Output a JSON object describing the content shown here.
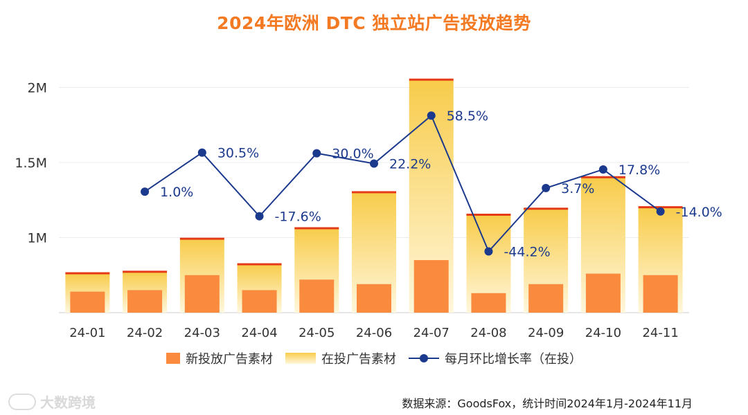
{
  "chart_data": {
    "type": "bar",
    "title": "2024年欧洲 DTC 独立站广告投放趋势",
    "categories": [
      "24-01",
      "24-02",
      "24-03",
      "24-04",
      "24-05",
      "24-06",
      "24-07",
      "24-08",
      "24-09",
      "24-10",
      "24-11"
    ],
    "series": [
      {
        "name": "新投放广告素材",
        "type": "bar",
        "values": [
          0.64,
          0.65,
          0.75,
          0.65,
          0.72,
          0.69,
          0.85,
          0.63,
          0.69,
          0.76,
          0.75
        ]
      },
      {
        "name": "在投广告素材",
        "type": "bar",
        "values": [
          0.76,
          0.77,
          0.99,
          0.82,
          1.06,
          1.3,
          2.05,
          1.15,
          1.19,
          1.4,
          1.2
        ]
      },
      {
        "name": "每月环比增长率（在投）",
        "type": "line",
        "values": [
          null,
          1.0,
          30.5,
          -17.6,
          30.0,
          22.2,
          58.5,
          -44.2,
          3.7,
          17.8,
          -14.0
        ]
      }
    ],
    "point_labels": [
      "",
      "1.0%",
      "30.5%",
      "-17.6%",
      "30.0%",
      "22.2%",
      "58.5%",
      "-44.2%",
      "3.7%",
      "17.8%",
      "-14.0%"
    ],
    "y_ticks": [
      "1M",
      "1.5M",
      "2M"
    ],
    "y_tick_values": [
      1,
      1.5,
      2
    ],
    "ylim": [
      0.5,
      2.1
    ],
    "y2lim": [
      -80,
      80
    ],
    "legend_position": "bottom",
    "grid": true
  },
  "colors": {
    "new_bar": "#f98a3e",
    "active_top": "#f8cc4b",
    "active_bottom": "#fff7dc",
    "cap": "#e53a17",
    "line": "#1c3a8d"
  },
  "legend": {
    "new": "新投放广告素材",
    "active": "在投广告素材",
    "growth": "每月环比增长率（在投）"
  },
  "source": "数据来源：GoodsFox，统计时间2024年1月-2024年11月",
  "watermark": "大数跨境"
}
